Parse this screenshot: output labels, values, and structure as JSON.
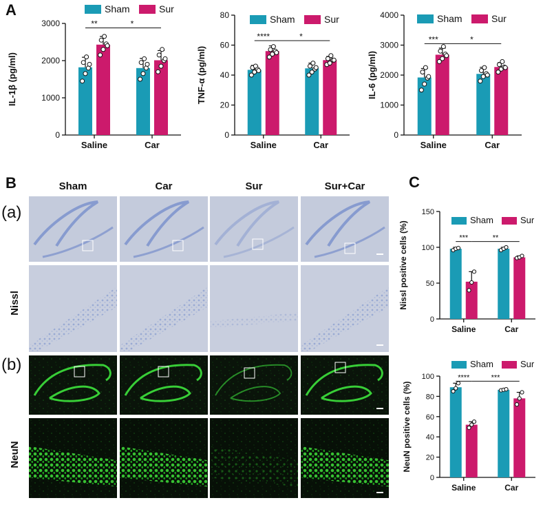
{
  "panels": {
    "A": "A",
    "B": "B",
    "C": "C"
  },
  "colors": {
    "sham": "#1a9bb5",
    "sur": "#cc1a6c",
    "axis": "#111111"
  },
  "legend": {
    "sham": "Sham",
    "sur": "Sur"
  },
  "micrographs": {
    "columns": [
      "Sham",
      "Car",
      "Sur",
      "Sur+Car"
    ],
    "row_labels": {
      "a": "(a)",
      "b": "(b)",
      "nissl": "Nissl",
      "neun": "NeuN"
    }
  },
  "chart_data": [
    {
      "id": "il1b",
      "type": "bar",
      "ylabel": "IL-1β (pg/ml)",
      "categories": [
        "Saline",
        "Car"
      ],
      "ylim": [
        0,
        3000
      ],
      "yticks": [
        0,
        1000,
        2000,
        3000
      ],
      "series": [
        {
          "name": "Sham",
          "values": [
            1820,
            1800
          ],
          "errors": [
            270,
            260
          ],
          "points": [
            [
              1450,
              1650,
              1800,
              1950,
              2100,
              1900
            ],
            [
              1500,
              1650,
              1800,
              1950,
              2050,
              1900
            ]
          ]
        },
        {
          "name": "Sur",
          "values": [
            2430,
            2010
          ],
          "errors": [
            220,
            260
          ],
          "points": [
            [
              2150,
              2300,
              2450,
              2550,
              2650,
              2400
            ],
            [
              1700,
              1850,
              2000,
              2150,
              2300,
              2050
            ]
          ]
        }
      ],
      "significance": [
        {
          "label": "**",
          "from": [
            0,
            0
          ],
          "to": [
            0,
            1
          ],
          "y": 2880
        },
        {
          "label": "*",
          "from": [
            0,
            1
          ],
          "to": [
            1,
            1
          ],
          "y": 2880
        }
      ]
    },
    {
      "id": "tnfa",
      "type": "bar",
      "ylabel": "TNF-α (pg/ml)",
      "categories": [
        "Saline",
        "Car"
      ],
      "ylim": [
        0,
        80
      ],
      "yticks": [
        0,
        20,
        40,
        60,
        80
      ],
      "series": [
        {
          "name": "Sham",
          "values": [
            43.5,
            44.5
          ],
          "errors": [
            3,
            3.5
          ],
          "points": [
            [
              40,
              42,
              44,
              45,
              46,
              43
            ],
            [
              40,
              42,
              44,
              46,
              48,
              45
            ]
          ]
        },
        {
          "name": "Sur",
          "values": [
            56,
            50
          ],
          "errors": [
            3.5,
            2.5
          ],
          "points": [
            [
              52,
              54,
              56,
              57,
              59,
              55
            ],
            [
              47,
              48,
              50,
              51,
              53,
              50
            ]
          ]
        }
      ],
      "significance": [
        {
          "label": "****",
          "from": [
            0,
            0
          ],
          "to": [
            0,
            1
          ],
          "y": 63
        },
        {
          "label": "*",
          "from": [
            0,
            1
          ],
          "to": [
            1,
            1
          ],
          "y": 63
        }
      ]
    },
    {
      "id": "il6",
      "type": "bar",
      "ylabel": "IL-6 (pg/ml)",
      "categories": [
        "Saline",
        "Car"
      ],
      "ylim": [
        0,
        4000
      ],
      "yticks": [
        0,
        1000,
        2000,
        3000,
        4000
      ],
      "series": [
        {
          "name": "Sham",
          "values": [
            1920,
            2040
          ],
          "errors": [
            300,
            220
          ],
          "points": [
            [
              1500,
              1700,
              1900,
              2100,
              2250,
              1950
            ],
            [
              1800,
              1950,
              2050,
              2150,
              2250,
              2000
            ]
          ]
        },
        {
          "name": "Sur",
          "values": [
            2680,
            2270
          ],
          "errors": [
            220,
            150
          ],
          "points": [
            [
              2450,
              2550,
              2700,
              2800,
              2950,
              2650
            ],
            [
              2100,
              2200,
              2270,
              2350,
              2450,
              2250
            ]
          ]
        }
      ],
      "significance": [
        {
          "label": "***",
          "from": [
            0,
            0
          ],
          "to": [
            0,
            1
          ],
          "y": 3050
        },
        {
          "label": "*",
          "from": [
            0,
            1
          ],
          "to": [
            1,
            1
          ],
          "y": 3050
        }
      ]
    },
    {
      "id": "nissl_pos",
      "type": "bar",
      "ylabel": "Nissl positive cells (%)",
      "categories": [
        "Saline",
        "Car"
      ],
      "ylim": [
        0,
        150
      ],
      "yticks": [
        0,
        50,
        100,
        150
      ],
      "series": [
        {
          "name": "Sham",
          "values": [
            98,
            98
          ],
          "errors": [
            2,
            2
          ],
          "points": [
            [
              96,
              98,
              99
            ],
            [
              96,
              98,
              100
            ]
          ]
        },
        {
          "name": "Sur",
          "values": [
            52,
            86
          ],
          "errors": [
            14,
            2
          ],
          "points": [
            [
              40,
              51,
              66
            ],
            [
              85,
              86,
              88
            ]
          ]
        }
      ],
      "significance": [
        {
          "label": "***",
          "from": [
            0,
            0
          ],
          "to": [
            0,
            1
          ],
          "y": 108
        },
        {
          "label": "**",
          "from": [
            0,
            1
          ],
          "to": [
            1,
            1
          ],
          "y": 108
        }
      ]
    },
    {
      "id": "neun_pos",
      "type": "bar",
      "ylabel": "NeuN positive cells (%)",
      "categories": [
        "Saline",
        "Car"
      ],
      "ylim": [
        0,
        100
      ],
      "yticks": [
        0,
        20,
        40,
        60,
        80,
        100
      ],
      "series": [
        {
          "name": "Sham",
          "values": [
            89,
            86.5
          ],
          "errors": [
            4,
            0.8
          ],
          "points": [
            [
              85,
              88,
              93
            ],
            [
              86,
              86.5,
              87
            ]
          ]
        },
        {
          "name": "Sur",
          "values": [
            52,
            78
          ],
          "errors": [
            3,
            6
          ],
          "points": [
            [
              49,
              52,
              55
            ],
            [
              72,
              78,
              84
            ]
          ]
        }
      ],
      "significance": [
        {
          "label": "****",
          "from": [
            0,
            0
          ],
          "to": [
            0,
            1
          ],
          "y": 95
        },
        {
          "label": "***",
          "from": [
            0,
            1
          ],
          "to": [
            1,
            1
          ],
          "y": 95
        }
      ]
    }
  ]
}
